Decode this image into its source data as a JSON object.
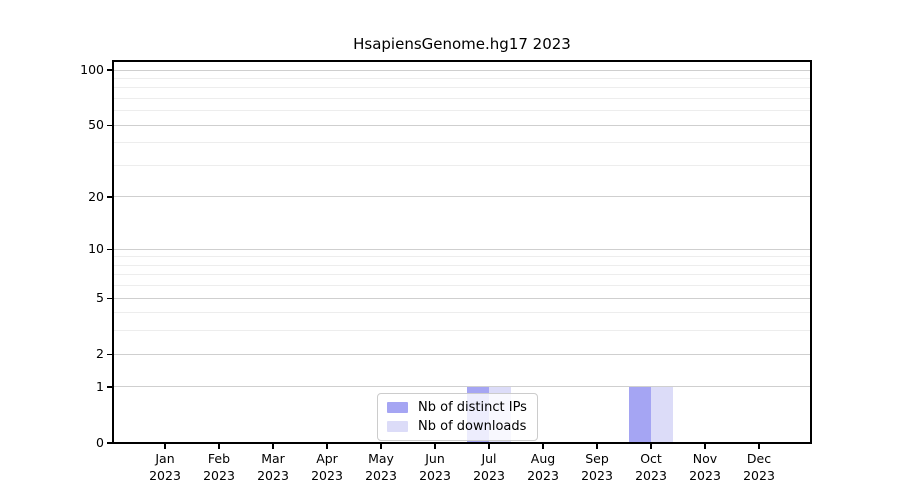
{
  "chart_data": {
    "type": "bar",
    "title": "HsapiensGenome.hg17 2023",
    "categories": [
      "Jan 2023",
      "Feb 2023",
      "Mar 2023",
      "Apr 2023",
      "May 2023",
      "Jun 2023",
      "Jul 2023",
      "Aug 2023",
      "Sep 2023",
      "Oct 2023",
      "Nov 2023",
      "Dec 2023"
    ],
    "months": [
      {
        "label": "Jan",
        "year": "2023"
      },
      {
        "label": "Feb",
        "year": "2023"
      },
      {
        "label": "Mar",
        "year": "2023"
      },
      {
        "label": "Apr",
        "year": "2023"
      },
      {
        "label": "May",
        "year": "2023"
      },
      {
        "label": "Jun",
        "year": "2023"
      },
      {
        "label": "Jul",
        "year": "2023"
      },
      {
        "label": "Aug",
        "year": "2023"
      },
      {
        "label": "Sep",
        "year": "2023"
      },
      {
        "label": "Oct",
        "year": "2023"
      },
      {
        "label": "Nov",
        "year": "2023"
      },
      {
        "label": "Dec",
        "year": "2023"
      }
    ],
    "series": [
      {
        "name": "Nb of distinct IPs",
        "color": "#a5a5f3",
        "values": [
          0,
          0,
          0,
          0,
          0,
          0,
          1,
          0,
          0,
          1,
          0,
          0
        ]
      },
      {
        "name": "Nb of downloads",
        "color": "#dcdcf8",
        "values": [
          0,
          0,
          0,
          0,
          0,
          0,
          1,
          0,
          0,
          1,
          0,
          0
        ]
      }
    ],
    "xlabel": "",
    "ylabel": "",
    "yscale": "log1p",
    "ylim": [
      0,
      112
    ],
    "y_major_ticks": [
      0,
      1,
      2,
      5,
      10,
      20,
      50,
      100
    ],
    "y_gridlines_major": [
      1,
      2,
      5,
      10,
      20,
      50,
      100
    ],
    "y_gridlines_minor": [
      3,
      4,
      6,
      7,
      8,
      9,
      30,
      40,
      60,
      70,
      80,
      90
    ],
    "grid": true,
    "legend_position": "lower center"
  },
  "colors": {
    "background": "#ffffff",
    "spine": "#000000",
    "gridline_major": "#cfcfcf",
    "gridline_minor": "#ededed",
    "bar_distinct_ips": "#a5a5f3",
    "bar_downloads": "#dcdcf8",
    "legend_border": "#cccccc"
  }
}
